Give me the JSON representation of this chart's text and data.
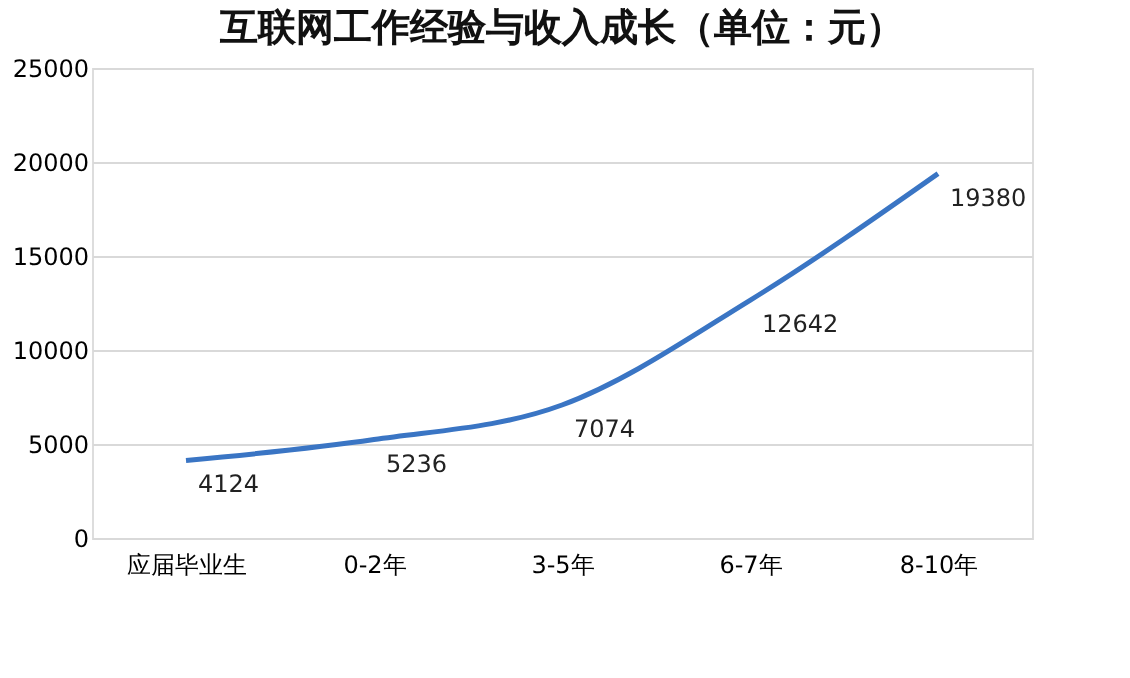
{
  "chart_data": {
    "type": "line",
    "title": "互联网工作经验与收入成长（单位：元）",
    "categories": [
      "应届毕业生",
      "0-2年",
      "3-5年",
      "6-7年",
      "8-10年"
    ],
    "series": [
      {
        "color": "#3a75c4",
        "values": [
          4124,
          5236,
          7074,
          12642,
          19380
        ]
      }
    ],
    "ylim": [
      0,
      25000
    ],
    "yticks": [
      0,
      5000,
      10000,
      15000,
      20000,
      25000
    ],
    "grid": "y",
    "data_labels": true,
    "marker": "none",
    "line_style": "solid",
    "legend": false
  }
}
